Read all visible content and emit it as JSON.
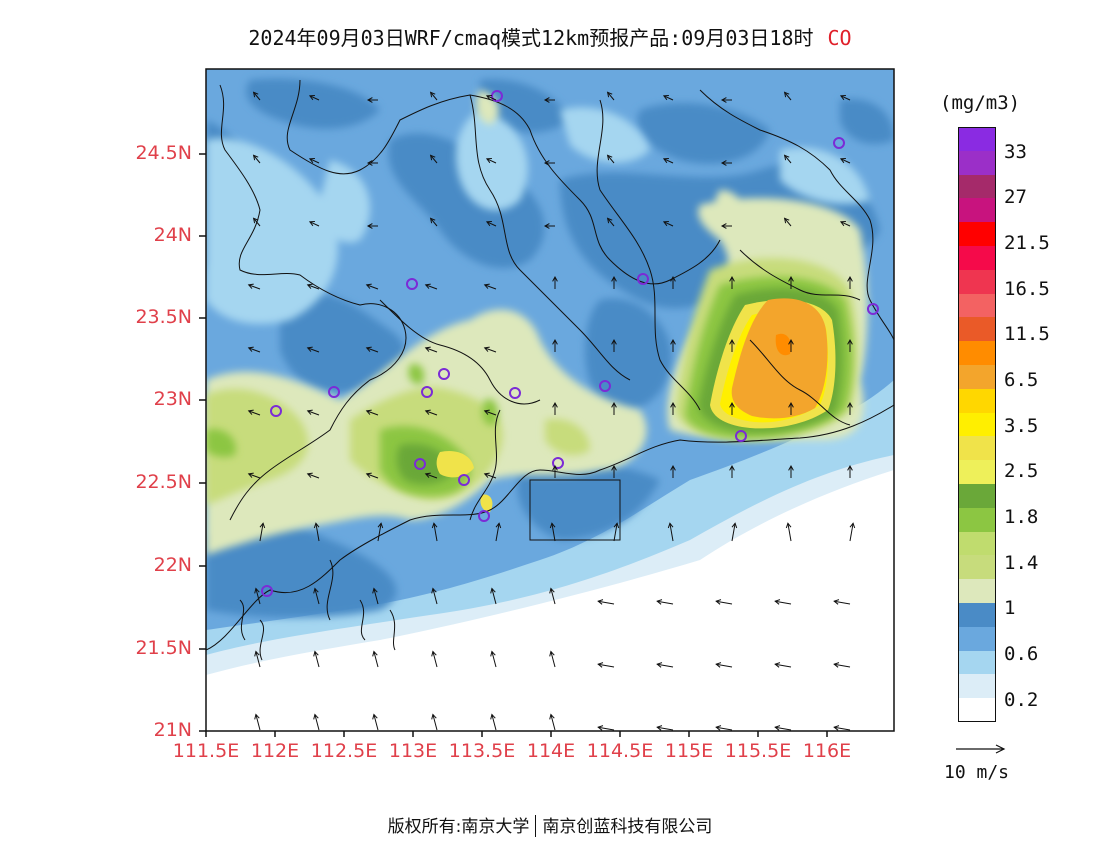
{
  "title": {
    "text": "2024年09月03日WRF/cmaq模式12km预报产品:09月03日18时",
    "species": "CO"
  },
  "axes": {
    "lat_labels": [
      "24.5N",
      "24N",
      "23.5N",
      "23N",
      "22.5N",
      "22N",
      "21.5N",
      "21N"
    ],
    "lon_labels": [
      "111.5E",
      "112E",
      "112.5E",
      "113E",
      "113.5E",
      "114E",
      "114.5E",
      "115E",
      "115.5E",
      "116E"
    ]
  },
  "colorbar": {
    "unit": "(mg/m3)",
    "labels": [
      "33",
      "27",
      "21.5",
      "16.5",
      "11.5",
      "6.5",
      "3.5",
      "2.5",
      "1.8",
      "1.4",
      "1",
      "0.6",
      "0.2"
    ],
    "colors": [
      "#8a2be2",
      "#9b2fc8",
      "#a52a6a",
      "#c8137e",
      "#ff0000",
      "#f50a4a",
      "#ef3550",
      "#f36262",
      "#ea5a28",
      "#ff8c00",
      "#f3a52c",
      "#ffd700",
      "#ffef00",
      "#f0e34a",
      "#eef05a",
      "#6aa839",
      "#8cc642",
      "#c0dc6e",
      "#c7dc7c",
      "#dde8bc",
      "#4a8bc6",
      "#6aa8de",
      "#a5d6f0",
      "#dcedf7",
      "#ffffff"
    ]
  },
  "colors": {
    "land_low": "#6aa8de",
    "land_mid": "#4a8bc6",
    "sea": "#a5d6f0",
    "label_red": "#e0404a"
  },
  "wind": {
    "reference_label": "10 m/s",
    "reference_icon": "arrow-icon"
  },
  "footer": {
    "copyright": "版权所有:南京大学",
    "company": "南京创蓝科技有限公司"
  }
}
